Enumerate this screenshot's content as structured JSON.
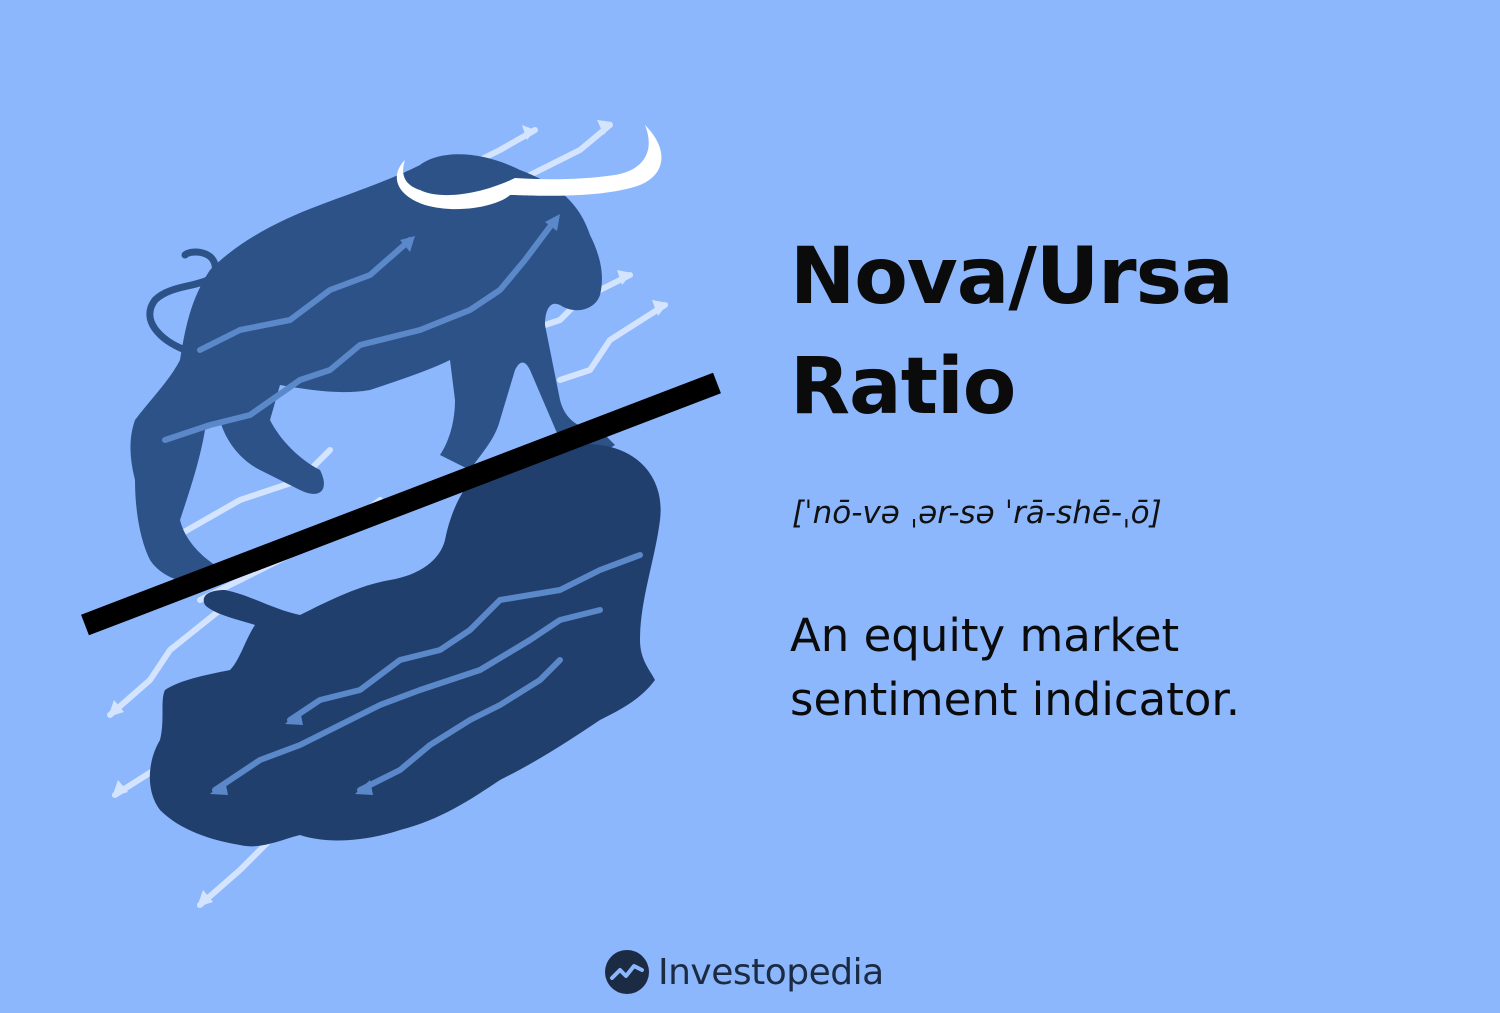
{
  "title": {
    "line1": "Nova/Ursa",
    "line2": "Ratio"
  },
  "pronunciation": "[ˈnō-və ˌər-sə ˈrā-shē-ˌō]",
  "definition": {
    "line1": "An equity market",
    "line2": "sentiment indicator."
  },
  "brand": {
    "name": "Investopedia",
    "logo_icon": "investopedia-logo-icon"
  },
  "illustration": {
    "subject": "bull-and-bear-reflection",
    "colors": {
      "background": "#8cb7fc",
      "bull": "#2c5288",
      "bear": "#213f6d",
      "horns": "#ffffff",
      "arrows_light": "#d4e4ff",
      "arrows_dark": "#5b88c9",
      "divider": "#000000"
    }
  }
}
